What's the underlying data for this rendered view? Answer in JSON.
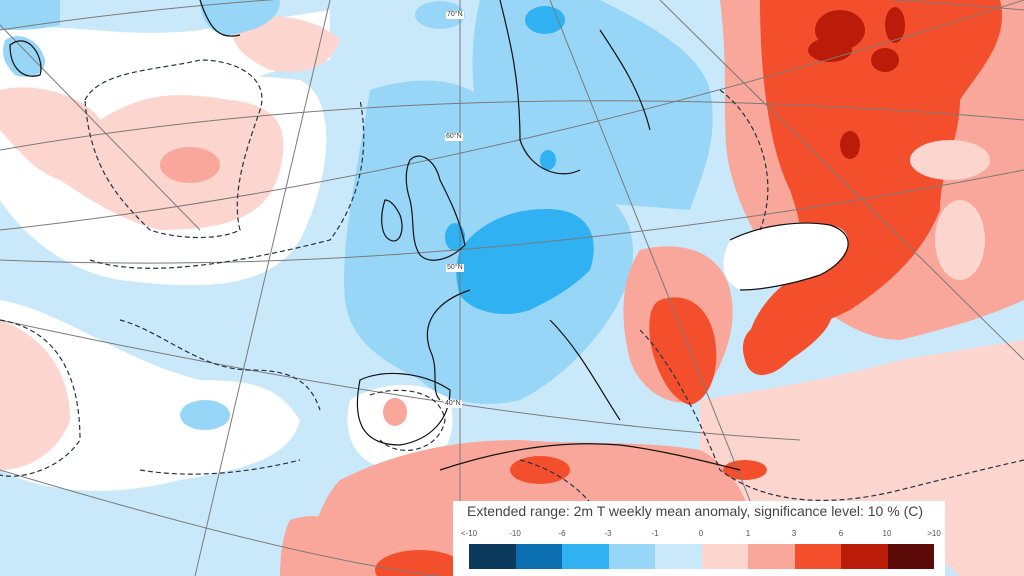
{
  "legend": {
    "title": "Extended range: 2m T weekly mean anomaly, significance level: 10 % (C)",
    "ticks": [
      "<-10",
      "-10",
      "-6",
      "-3",
      "-1",
      "0",
      "1",
      "3",
      "6",
      "10",
      ">10"
    ],
    "colors": [
      "#0b3a5c",
      "#0a6eb0",
      "#2fb1f2",
      "#98d6f8",
      "#c9e9fb",
      "#fcd5cf",
      "#f8a79a",
      "#f44f2c",
      "#bb1c0a",
      "#5c0a08"
    ]
  },
  "map": {
    "variable": "2m temperature weekly mean anomaly",
    "unit": "C",
    "latitude_labels": [
      "70°N",
      "60°N",
      "50°N",
      "40°N"
    ],
    "background_color": "#c9e9fb",
    "anomaly_regions": [
      {
        "area": "Scandinavia / Northern Europe",
        "range": "-1 to -3"
      },
      {
        "area": "Germany / Benelux / France",
        "range": "-3 to -6"
      },
      {
        "area": "Western Russia",
        "range": "3 to 10"
      },
      {
        "area": "Balkans / Greece / Turkey",
        "range": "3 to 6"
      },
      {
        "area": "North Africa",
        "range": "1 to 6"
      },
      {
        "area": "Central North Atlantic",
        "range": "0 to 3"
      }
    ]
  }
}
